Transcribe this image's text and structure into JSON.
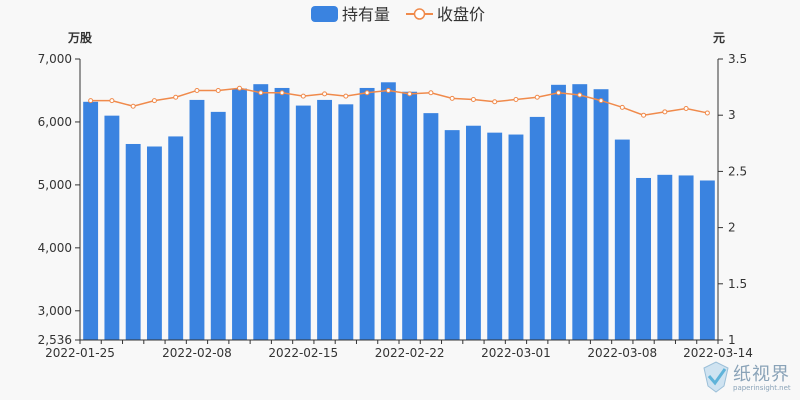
{
  "chart_data": {
    "type": "bar+line",
    "legend": {
      "placement": "top-center",
      "items": [
        {
          "name": "持有量",
          "type": "bar",
          "color": "#3a83e0"
        },
        {
          "name": "收盘价",
          "type": "line",
          "color": "#f08a4b"
        }
      ]
    },
    "y_left": {
      "unit": "万股",
      "min": 2536,
      "max": 7000,
      "ticks": [
        "7,000",
        "6,000",
        "5,000",
        "4,000",
        "3,000",
        "2,536"
      ]
    },
    "y_right": {
      "unit": "元",
      "min": 1,
      "max": 3.5,
      "ticks": [
        "3.5",
        "3",
        "2.5",
        "2",
        "1.5",
        "1"
      ]
    },
    "x_tick_labels": [
      "2022-01-25",
      "2022-02-08",
      "2022-02-15",
      "2022-02-22",
      "2022-03-01",
      "2022-03-08",
      "2022-03-14"
    ],
    "x_tick_positions": [
      0,
      5,
      10,
      15,
      20,
      25,
      29
    ],
    "series": [
      {
        "name": "持有量",
        "values": [
          6320,
          6100,
          5650,
          5610,
          5770,
          6350,
          6160,
          6530,
          6600,
          6540,
          6260,
          6350,
          6280,
          6540,
          6630,
          6480,
          6140,
          5870,
          5940,
          5830,
          5800,
          6080,
          6590,
          6600,
          6520,
          5720,
          5110,
          5160,
          5150,
          5070
        ]
      },
      {
        "name": "收盘价",
        "values": [
          3.13,
          3.13,
          3.08,
          3.13,
          3.16,
          3.22,
          3.22,
          3.24,
          3.2,
          3.2,
          3.17,
          3.19,
          3.17,
          3.2,
          3.22,
          3.19,
          3.2,
          3.15,
          3.14,
          3.12,
          3.14,
          3.16,
          3.2,
          3.18,
          3.13,
          3.07,
          3.0,
          3.03,
          3.06,
          3.02
        ]
      }
    ]
  },
  "watermark": {
    "text": "纸视界",
    "url": "paperinsight.net"
  }
}
